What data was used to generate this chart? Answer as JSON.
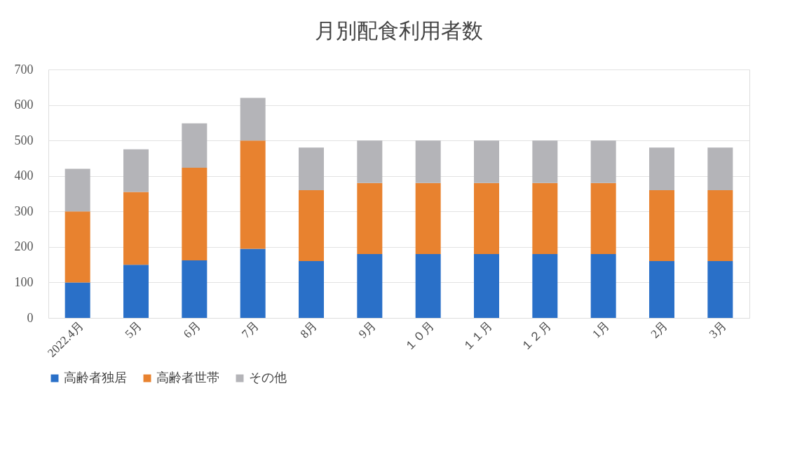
{
  "chart_data": {
    "type": "bar",
    "title": "月別配食利用者数",
    "stacked": true,
    "categories": [
      "2022.4月",
      "5月",
      "6月",
      "7月",
      "8月",
      "9月",
      "１０月",
      "１１月",
      "１２月",
      "1月",
      "2月",
      "3月"
    ],
    "series": [
      {
        "name": "高齢者独居",
        "color": "#2a70c8",
        "values": [
          100,
          150,
          162,
          195,
          160,
          180,
          180,
          180,
          180,
          180,
          160,
          160
        ]
      },
      {
        "name": "高齢者世帯",
        "color": "#e8822f",
        "values": [
          200,
          205,
          261,
          305,
          200,
          200,
          200,
          200,
          200,
          200,
          200,
          200
        ]
      },
      {
        "name": "その他",
        "color": "#b4b4b8",
        "values": [
          120,
          120,
          125,
          120,
          120,
          120,
          120,
          120,
          120,
          120,
          120,
          120
        ]
      }
    ],
    "ylim": [
      0,
      700
    ],
    "yticks": [
      0,
      100,
      200,
      300,
      400,
      500,
      600,
      700
    ],
    "grid": "y",
    "legend": "bottom"
  }
}
